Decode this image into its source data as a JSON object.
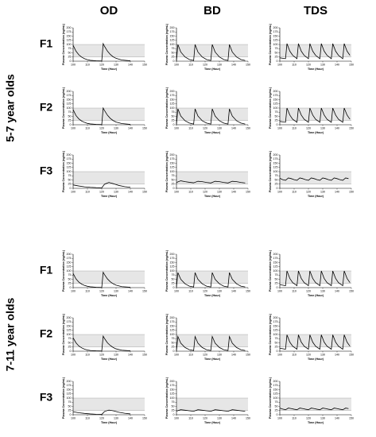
{
  "column_headers": [
    "OD",
    "BD",
    "TDS"
  ],
  "groups": [
    {
      "label": "5-7 year olds",
      "rows": [
        "F1",
        "F2",
        "F3"
      ]
    },
    {
      "label": "7-11 year olds",
      "rows": [
        "F1",
        "F2",
        "F3"
      ]
    }
  ],
  "chart_data": [
    {
      "type": "line",
      "y_label": "Plasma Concentration (ng/mL)",
      "x_label": "Time (Hour)",
      "xlim": [
        100,
        150
      ],
      "xticks": [
        100,
        110,
        120,
        130,
        140,
        150
      ],
      "ylim": [
        0,
        200
      ],
      "yticks": [
        0,
        25,
        50,
        75,
        100,
        125,
        150,
        175,
        200
      ],
      "band": [
        25,
        100
      ],
      "color": "#000000",
      "x": [
        100,
        102,
        104,
        106,
        108,
        110,
        112,
        116,
        120,
        121,
        122,
        124,
        126,
        128,
        130,
        134,
        140
      ],
      "values": [
        95,
        60,
        38,
        24,
        15,
        9,
        5,
        2,
        1,
        105,
        88,
        60,
        40,
        26,
        17,
        7,
        2
      ]
    },
    {
      "type": "line",
      "y_label": "Plasma Concentration (ng/mL)",
      "x_label": "Time (Hour)",
      "xlim": [
        100,
        150
      ],
      "xticks": [
        100,
        110,
        120,
        130,
        140,
        150
      ],
      "ylim": [
        0,
        200
      ],
      "yticks": [
        0,
        25,
        50,
        75,
        100,
        125,
        150,
        175,
        200
      ],
      "band": [
        25,
        100
      ],
      "color": "#000000",
      "x": [
        100,
        101,
        103,
        106,
        109,
        112,
        113,
        115,
        118,
        121,
        124,
        125,
        127,
        130,
        133,
        136,
        137,
        139,
        142,
        145,
        148
      ],
      "values": [
        3,
        100,
        55,
        25,
        10,
        4,
        100,
        55,
        25,
        10,
        4,
        100,
        55,
        25,
        10,
        4,
        100,
        55,
        25,
        10,
        4
      ]
    },
    {
      "type": "line",
      "y_label": "Plasma Concentration (ng/mL)",
      "x_label": "Time (Hour)",
      "xlim": [
        100,
        150
      ],
      "xticks": [
        100,
        110,
        120,
        130,
        140,
        150
      ],
      "ylim": [
        0,
        200
      ],
      "yticks": [
        0,
        25,
        50,
        75,
        100,
        125,
        150,
        175,
        200
      ],
      "band": [
        25,
        100
      ],
      "color": "#000000",
      "x": [
        100,
        104,
        105,
        107,
        109,
        112,
        113,
        115,
        117,
        120,
        121,
        123,
        125,
        128,
        129,
        131,
        133,
        136,
        137,
        139,
        141,
        144,
        145,
        147,
        149
      ],
      "values": [
        20,
        15,
        105,
        60,
        35,
        15,
        105,
        60,
        35,
        15,
        105,
        60,
        35,
        15,
        105,
        60,
        35,
        15,
        105,
        60,
        35,
        15,
        105,
        60,
        35
      ]
    },
    {
      "type": "line",
      "y_label": "Plasma Concentration (ng/mL)",
      "x_label": "Time (Hour)",
      "xlim": [
        100,
        150
      ],
      "xticks": [
        100,
        110,
        120,
        130,
        140,
        150
      ],
      "ylim": [
        0,
        200
      ],
      "yticks": [
        0,
        25,
        50,
        75,
        100,
        125,
        150,
        175,
        200
      ],
      "band": [
        25,
        100
      ],
      "color": "#000000",
      "x": [
        100,
        102,
        104,
        106,
        108,
        110,
        112,
        116,
        120,
        121,
        122,
        124,
        126,
        128,
        130,
        134,
        140
      ],
      "values": [
        90,
        55,
        35,
        22,
        14,
        8,
        5,
        2,
        1,
        100,
        84,
        57,
        38,
        25,
        16,
        7,
        2
      ]
    },
    {
      "type": "line",
      "y_label": "Plasma Concentration (ng/mL)",
      "x_label": "Time (Hour)",
      "xlim": [
        100,
        150
      ],
      "xticks": [
        100,
        110,
        120,
        130,
        140,
        150
      ],
      "ylim": [
        0,
        200
      ],
      "yticks": [
        0,
        25,
        50,
        75,
        100,
        125,
        150,
        175,
        200
      ],
      "band": [
        25,
        100
      ],
      "color": "#000000",
      "x": [
        100,
        101,
        103,
        106,
        109,
        112,
        113,
        115,
        118,
        121,
        124,
        125,
        127,
        130,
        133,
        136,
        137,
        139,
        142,
        145,
        148
      ],
      "values": [
        3,
        95,
        52,
        24,
        10,
        4,
        95,
        52,
        24,
        10,
        4,
        95,
        52,
        24,
        10,
        4,
        95,
        52,
        24,
        10,
        4
      ]
    },
    {
      "type": "line",
      "y_label": "Plasma Concentration (ng/mL)",
      "x_label": "Time (Hour)",
      "xlim": [
        100,
        150
      ],
      "xticks": [
        100,
        110,
        120,
        130,
        140,
        150
      ],
      "ylim": [
        0,
        200
      ],
      "yticks": [
        0,
        25,
        50,
        75,
        100,
        125,
        150,
        175,
        200
      ],
      "band": [
        25,
        100
      ],
      "color": "#000000",
      "x": [
        100,
        104,
        105,
        107,
        109,
        112,
        113,
        115,
        117,
        120,
        121,
        123,
        125,
        128,
        129,
        131,
        133,
        136,
        137,
        139,
        141,
        144,
        145,
        147,
        149
      ],
      "values": [
        20,
        15,
        100,
        58,
        33,
        15,
        100,
        58,
        33,
        15,
        100,
        58,
        33,
        15,
        100,
        58,
        33,
        15,
        100,
        58,
        33,
        15,
        100,
        58,
        33
      ]
    },
    {
      "type": "line",
      "y_label": "Plasma Concentration (ng/mL)",
      "x_label": "Time (Hour)",
      "xlim": [
        100,
        150
      ],
      "xticks": [
        100,
        110,
        120,
        130,
        140,
        150
      ],
      "ylim": [
        0,
        200
      ],
      "yticks": [
        0,
        25,
        50,
        75,
        100,
        125,
        150,
        175,
        200
      ],
      "band": [
        25,
        100
      ],
      "color": "#000000",
      "x": [
        100,
        104,
        108,
        112,
        116,
        120,
        122,
        125,
        128,
        132,
        136,
        140
      ],
      "values": [
        20,
        14,
        9,
        6,
        4,
        3,
        25,
        35,
        28,
        17,
        10,
        6
      ]
    },
    {
      "type": "line",
      "y_label": "Plasma Concentration (ng/mL)",
      "x_label": "Time (Hour)",
      "xlim": [
        100,
        150
      ],
      "xticks": [
        100,
        110,
        120,
        130,
        140,
        150
      ],
      "ylim": [
        0,
        200
      ],
      "yticks": [
        0,
        25,
        50,
        75,
        100,
        125,
        150,
        175,
        200
      ],
      "band": [
        25,
        100
      ],
      "color": "#000000",
      "x": [
        100,
        103,
        106,
        109,
        112,
        115,
        118,
        121,
        124,
        127,
        130,
        133,
        136,
        139,
        142,
        145,
        148
      ],
      "values": [
        35,
        45,
        40,
        36,
        33,
        42,
        40,
        35,
        32,
        42,
        40,
        35,
        32,
        42,
        40,
        35,
        32
      ]
    },
    {
      "type": "line",
      "y_label": "Plasma Concentration (ng/mL)",
      "x_label": "Time (Hour)",
      "xlim": [
        100,
        150
      ],
      "xticks": [
        100,
        110,
        120,
        130,
        140,
        150
      ],
      "ylim": [
        0,
        200
      ],
      "yticks": [
        0,
        25,
        50,
        75,
        100,
        125,
        150,
        175,
        200
      ],
      "band": [
        25,
        100
      ],
      "color": "#000000",
      "x": [
        100,
        102,
        104,
        106,
        108,
        110,
        112,
        114,
        116,
        118,
        120,
        122,
        124,
        126,
        128,
        130,
        132,
        134,
        136,
        138,
        140,
        142,
        144,
        146,
        148
      ],
      "values": [
        60,
        52,
        48,
        62,
        58,
        52,
        48,
        62,
        58,
        52,
        48,
        62,
        58,
        52,
        48,
        62,
        58,
        52,
        48,
        62,
        58,
        52,
        48,
        62,
        58
      ]
    },
    {
      "type": "line",
      "y_label": "Plasma Concentration (ng/mL)",
      "x_label": "Time (Hour)",
      "xlim": [
        100,
        150
      ],
      "xticks": [
        100,
        110,
        120,
        130,
        140,
        150
      ],
      "ylim": [
        0,
        200
      ],
      "yticks": [
        0,
        25,
        50,
        75,
        100,
        125,
        150,
        175,
        200
      ],
      "band": [
        25,
        100
      ],
      "color": "#000000",
      "x": [
        100,
        102,
        104,
        106,
        108,
        110,
        112,
        116,
        120,
        121,
        122,
        124,
        126,
        128,
        130,
        134,
        140
      ],
      "values": [
        85,
        52,
        33,
        21,
        13,
        8,
        5,
        2,
        1,
        92,
        77,
        52,
        35,
        23,
        15,
        6,
        2
      ]
    },
    {
      "type": "line",
      "y_label": "Plasma Concentration (ng/mL)",
      "x_label": "Time (Hour)",
      "xlim": [
        100,
        150
      ],
      "xticks": [
        100,
        110,
        120,
        130,
        140,
        150
      ],
      "ylim": [
        0,
        200
      ],
      "yticks": [
        0,
        25,
        50,
        75,
        100,
        125,
        150,
        175,
        200
      ],
      "band": [
        25,
        100
      ],
      "color": "#000000",
      "x": [
        100,
        101,
        103,
        106,
        109,
        112,
        113,
        115,
        118,
        121,
        124,
        125,
        127,
        130,
        133,
        136,
        137,
        139,
        142,
        145,
        148
      ],
      "values": [
        3,
        90,
        50,
        23,
        9,
        4,
        90,
        50,
        23,
        9,
        4,
        90,
        50,
        23,
        9,
        4,
        90,
        50,
        23,
        9,
        4
      ]
    },
    {
      "type": "line",
      "y_label": "Plasma Concentration (ng/mL)",
      "x_label": "Time (Hour)",
      "xlim": [
        100,
        150
      ],
      "xticks": [
        100,
        110,
        120,
        130,
        140,
        150
      ],
      "ylim": [
        0,
        200
      ],
      "yticks": [
        0,
        25,
        50,
        75,
        100,
        125,
        150,
        175,
        200
      ],
      "band": [
        25,
        100
      ],
      "color": "#000000",
      "x": [
        100,
        104,
        105,
        107,
        109,
        112,
        113,
        115,
        117,
        120,
        121,
        123,
        125,
        128,
        129,
        131,
        133,
        136,
        137,
        139,
        141,
        144,
        145,
        147,
        149
      ],
      "values": [
        18,
        12,
        100,
        55,
        30,
        12,
        100,
        55,
        30,
        12,
        100,
        55,
        30,
        12,
        100,
        55,
        30,
        12,
        100,
        55,
        30,
        12,
        100,
        55,
        30
      ]
    },
    {
      "type": "line",
      "y_label": "Plasma Concentration (ng/mL)",
      "x_label": "Time (Hour)",
      "xlim": [
        100,
        150
      ],
      "xticks": [
        100,
        110,
        120,
        130,
        140,
        150
      ],
      "ylim": [
        0,
        200
      ],
      "yticks": [
        0,
        25,
        50,
        75,
        100,
        125,
        150,
        175,
        200
      ],
      "band": [
        25,
        100
      ],
      "color": "#000000",
      "x": [
        100,
        102,
        104,
        106,
        108,
        110,
        112,
        116,
        120,
        121,
        122,
        124,
        126,
        128,
        130,
        134,
        140
      ],
      "values": [
        80,
        50,
        31,
        20,
        12,
        7,
        4,
        2,
        1,
        90,
        75,
        50,
        34,
        22,
        14,
        6,
        2
      ]
    },
    {
      "type": "line",
      "y_label": "Plasma Concentration (ng/mL)",
      "x_label": "Time (Hour)",
      "xlim": [
        100,
        150
      ],
      "xticks": [
        100,
        110,
        120,
        130,
        140,
        150
      ],
      "ylim": [
        0,
        200
      ],
      "yticks": [
        0,
        25,
        50,
        75,
        100,
        125,
        150,
        175,
        200
      ],
      "band": [
        25,
        100
      ],
      "color": "#000000",
      "x": [
        100,
        101,
        103,
        106,
        109,
        112,
        113,
        115,
        118,
        121,
        124,
        125,
        127,
        130,
        133,
        136,
        137,
        139,
        142,
        145,
        148
      ],
      "values": [
        3,
        88,
        48,
        22,
        9,
        4,
        88,
        48,
        22,
        9,
        4,
        88,
        48,
        22,
        9,
        4,
        88,
        48,
        22,
        9,
        4
      ]
    },
    {
      "type": "line",
      "y_label": "Plasma Concentration (ng/mL)",
      "x_label": "Time (Hour)",
      "xlim": [
        100,
        150
      ],
      "xticks": [
        100,
        110,
        120,
        130,
        140,
        150
      ],
      "ylim": [
        0,
        200
      ],
      "yticks": [
        0,
        25,
        50,
        75,
        100,
        125,
        150,
        175,
        200
      ],
      "band": [
        25,
        100
      ],
      "color": "#000000",
      "x": [
        100,
        104,
        105,
        107,
        109,
        112,
        113,
        115,
        117,
        120,
        121,
        123,
        125,
        128,
        129,
        131,
        133,
        136,
        137,
        139,
        141,
        144,
        145,
        147,
        149
      ],
      "values": [
        18,
        12,
        98,
        54,
        30,
        12,
        98,
        54,
        30,
        12,
        98,
        54,
        30,
        12,
        98,
        54,
        30,
        12,
        98,
        54,
        30,
        12,
        98,
        54,
        30
      ]
    },
    {
      "type": "line",
      "y_label": "Plasma Concentration (ng/mL)",
      "x_label": "Time (Hour)",
      "xlim": [
        100,
        150
      ],
      "xticks": [
        100,
        110,
        120,
        130,
        140,
        150
      ],
      "ylim": [
        0,
        200
      ],
      "yticks": [
        0,
        25,
        50,
        75,
        100,
        125,
        150,
        175,
        200
      ],
      "band": [
        25,
        100
      ],
      "color": "#000000",
      "x": [
        100,
        104,
        108,
        112,
        116,
        120,
        122,
        125,
        128,
        132,
        136,
        140
      ],
      "values": [
        18,
        12,
        8,
        5,
        3,
        2,
        20,
        28,
        24,
        15,
        9,
        5
      ]
    },
    {
      "type": "line",
      "y_label": "Plasma Concentration (ng/mL)",
      "x_label": "Time (Hour)",
      "xlim": [
        100,
        150
      ],
      "xticks": [
        100,
        110,
        120,
        130,
        140,
        150
      ],
      "ylim": [
        0,
        200
      ],
      "yticks": [
        0,
        25,
        50,
        75,
        100,
        125,
        150,
        175,
        200
      ],
      "band": [
        25,
        100
      ],
      "color": "#000000",
      "x": [
        100,
        103,
        106,
        109,
        112,
        115,
        118,
        121,
        124,
        127,
        130,
        133,
        136,
        139,
        142,
        145,
        148
      ],
      "values": [
        22,
        30,
        27,
        24,
        21,
        30,
        27,
        24,
        21,
        30,
        27,
        24,
        21,
        30,
        27,
        24,
        21
      ]
    },
    {
      "type": "line",
      "y_label": "Plasma Concentration (ng/mL)",
      "x_label": "Time (Hour)",
      "xlim": [
        100,
        150
      ],
      "xticks": [
        100,
        110,
        120,
        130,
        140,
        150
      ],
      "ylim": [
        0,
        200
      ],
      "yticks": [
        0,
        25,
        50,
        75,
        100,
        125,
        150,
        175,
        200
      ],
      "band": [
        25,
        100
      ],
      "color": "#000000",
      "x": [
        100,
        102,
        104,
        106,
        108,
        110,
        112,
        114,
        116,
        118,
        120,
        122,
        124,
        126,
        128,
        130,
        132,
        134,
        136,
        138,
        140,
        142,
        144,
        146,
        148
      ],
      "values": [
        40,
        34,
        30,
        40,
        37,
        33,
        30,
        40,
        37,
        33,
        30,
        40,
        37,
        33,
        30,
        40,
        37,
        33,
        30,
        40,
        37,
        33,
        30,
        40,
        37
      ]
    }
  ]
}
